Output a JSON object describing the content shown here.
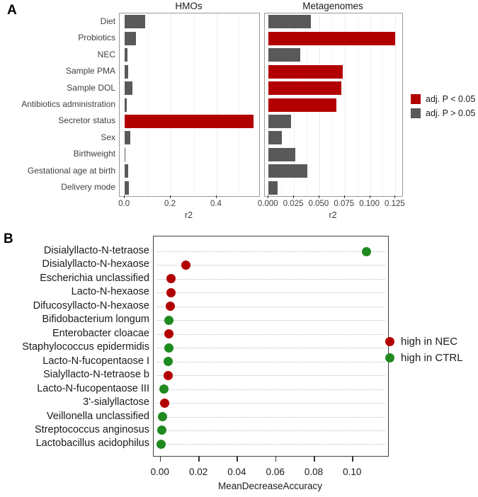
{
  "figure": {
    "panel_a_label": "A",
    "panel_b_label": "B",
    "colors": {
      "significant_red": "#b20000",
      "nonsignificant_gray": "#595959",
      "nec_red": "#b20000",
      "ctrl_green": "#1f8a1f"
    }
  },
  "chart_data": [
    {
      "type": "bar",
      "panel": "A",
      "orientation": "horizontal",
      "categories": [
        "Diet",
        "Probiotics",
        "NEC",
        "Sample PMA",
        "Sample DOL",
        "Antibiotics administration",
        "Secretor status",
        "Sex",
        "Birthweight",
        "Gestational age at birth",
        "Delivery mode"
      ],
      "series": [
        {
          "name": "HMOs",
          "xlabel": "r2",
          "tick_labels": [
            "0.0",
            "0.2",
            "0.4"
          ],
          "tick_values": [
            0.0,
            0.2,
            0.4
          ],
          "xlim": [
            -0.022,
            0.585
          ],
          "values": [
            0.09,
            0.05,
            0.013,
            0.016,
            0.034,
            0.008,
            0.56,
            0.024,
            0.004,
            0.015,
            0.018
          ],
          "adj_p_lt_005": [
            false,
            false,
            false,
            false,
            false,
            false,
            true,
            false,
            false,
            false,
            false
          ]
        },
        {
          "name": "Metagenomes",
          "xlabel": "r2",
          "tick_labels": [
            "0.000",
            "0.025",
            "0.050",
            "0.075",
            "0.100",
            "0.125"
          ],
          "tick_values": [
            0.0,
            0.025,
            0.05,
            0.075,
            0.1,
            0.125
          ],
          "xlim": [
            -0.0037,
            0.1317
          ],
          "values": [
            0.042,
            0.125,
            0.031,
            0.073,
            0.072,
            0.067,
            0.022,
            0.013,
            0.026,
            0.038,
            0.009
          ],
          "adj_p_lt_005": [
            false,
            true,
            false,
            true,
            true,
            true,
            false,
            false,
            false,
            false,
            false
          ]
        }
      ],
      "legend": [
        {
          "label": "adj. P < 0.05",
          "color": "#b20000"
        },
        {
          "label": "adj. P > 0.05",
          "color": "#595959"
        }
      ],
      "legend_position": "right"
    },
    {
      "type": "scatter",
      "panel": "B",
      "orientation": "horizontal",
      "categories": [
        "Disialyllacto-N-tetraose",
        "Disialyllacto-N-hexaose",
        "Escherichia unclassified",
        "Lacto-N-hexaose",
        "Difucosyllacto-N-hexaose",
        "Bifidobacterium longum",
        "Enterobacter cloacae",
        "Staphylococcus epidermidis",
        "Lacto-N-fucopentaose I",
        "Sialyllacto-N-tetraose b",
        "Lacto-N-fucopentaose III",
        "3'-sialyllactose",
        "Veillonella unclassified",
        "Streptococcus anginosus",
        "Lactobacillus acidophilus"
      ],
      "values": [
        0.107,
        0.013,
        0.0053,
        0.0053,
        0.0049,
        0.0045,
        0.0045,
        0.0042,
        0.004,
        0.004,
        0.0018,
        0.002,
        0.0011,
        0.0008,
        0.0004
      ],
      "groups": [
        "high in CTRL",
        "high in NEC",
        "high in NEC",
        "high in NEC",
        "high in NEC",
        "high in CTRL",
        "high in NEC",
        "high in CTRL",
        "high in CTRL",
        "high in NEC",
        "high in CTRL",
        "high in NEC",
        "high in CTRL",
        "high in CTRL",
        "high in CTRL"
      ],
      "xlabel": "MeanDecreaseAccuracy",
      "tick_labels": [
        "0.00",
        "0.02",
        "0.04",
        "0.06",
        "0.08",
        "0.10"
      ],
      "tick_values": [
        0.0,
        0.02,
        0.04,
        0.06,
        0.08,
        0.1
      ],
      "xlim": [
        -0.0036,
        0.1183
      ],
      "grid": "dotted-horizontal",
      "legend": [
        {
          "label": "high in NEC",
          "color": "#b20000"
        },
        {
          "label": "high in CTRL",
          "color": "#1f8a1f"
        }
      ],
      "legend_position": "right"
    }
  ]
}
